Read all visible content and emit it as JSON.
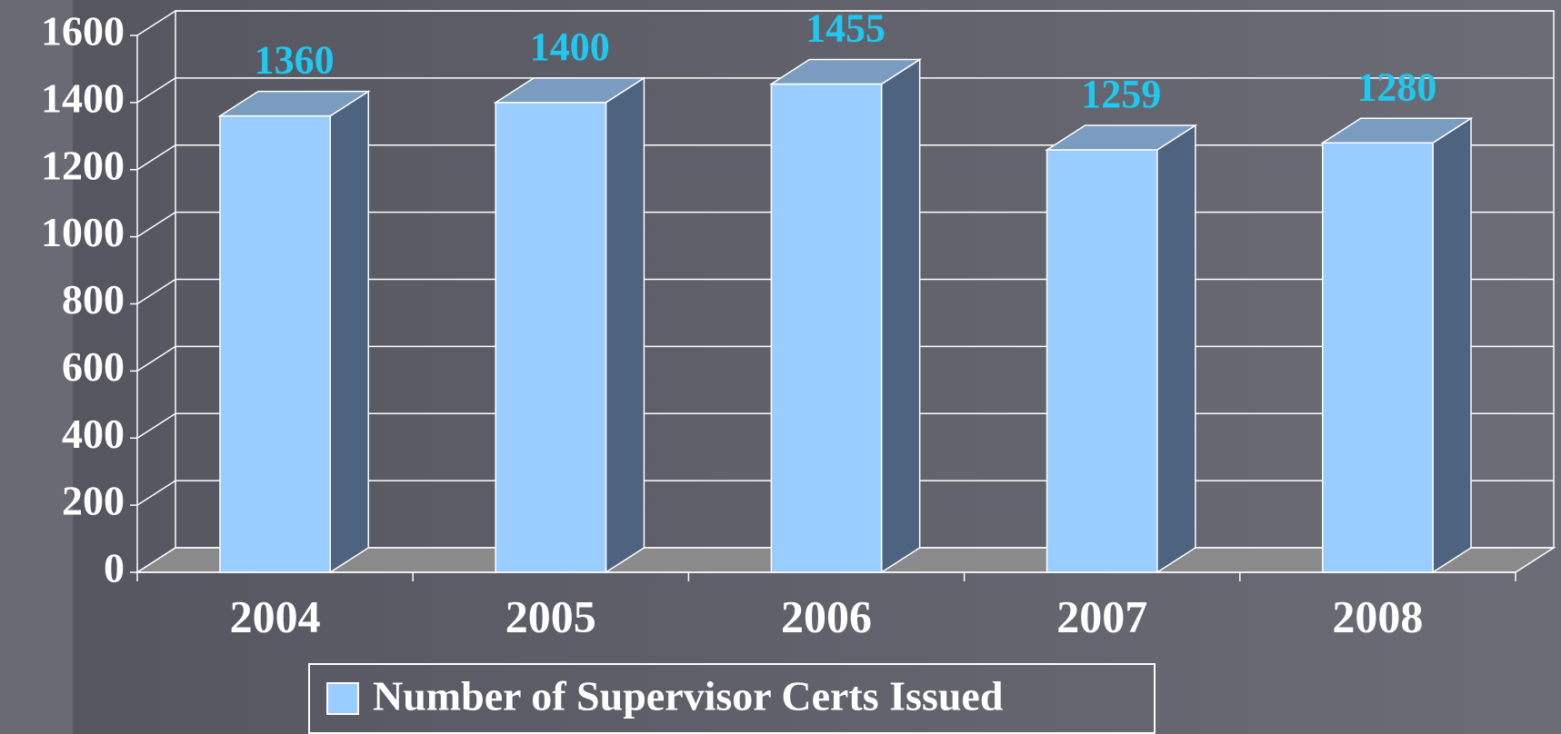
{
  "chart_data": {
    "type": "bar3d",
    "categories": [
      "2004",
      "2005",
      "2006",
      "2007",
      "2008"
    ],
    "series": [
      {
        "name": "Number of Supervisor Certs Issued",
        "color": "#99ccff",
        "values": [
          1360,
          1400,
          1455,
          1259,
          1280
        ]
      }
    ],
    "ylim": [
      0,
      1600
    ],
    "yticks": [
      0,
      200,
      400,
      600,
      800,
      1000,
      1200,
      1400,
      1600
    ],
    "grid": true,
    "legend": "bottom"
  }
}
